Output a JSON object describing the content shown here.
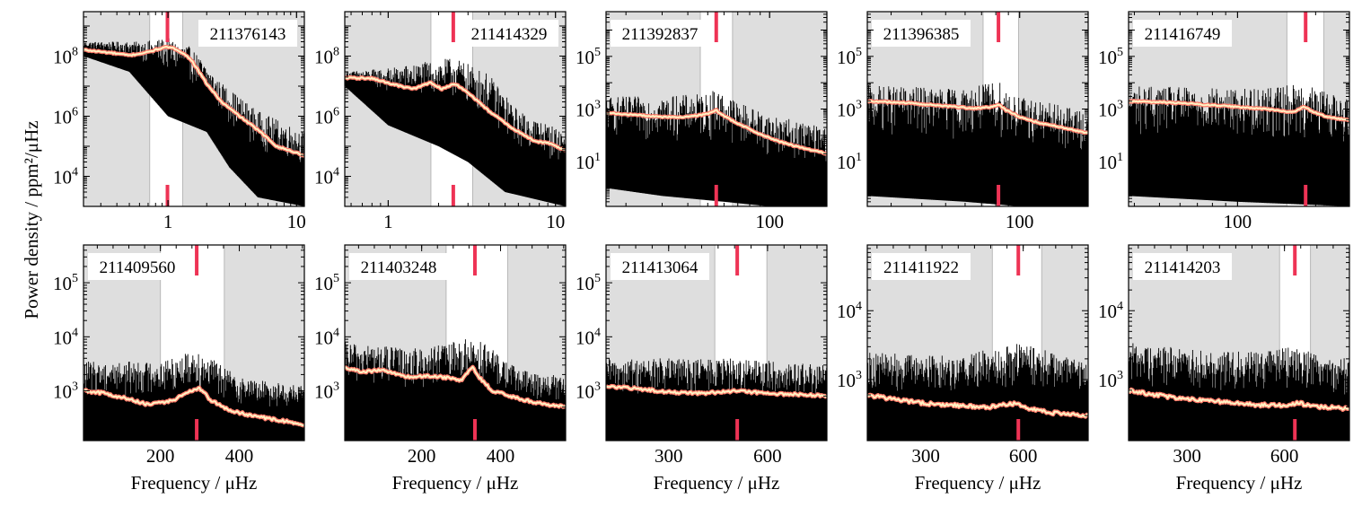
{
  "figure": {
    "ylabel": "Power density / ppm²/μHz",
    "xlabel": "Frequency / μHz"
  },
  "colors": {
    "band_shade": "#dedede",
    "band_edge": "#b8b8b8",
    "spectrum": "#000000",
    "smooth_outer": "#ff7a6a",
    "smooth_inner": "#fff3c4",
    "numax_marker": "#ee3355"
  },
  "chart_data": [
    {
      "type": "line",
      "id": "211376143",
      "xscale": "log",
      "yscale": "log",
      "xlim": [
        0.22,
        11.5
      ],
      "ylim": [
        1000,
        3000000000.0
      ],
      "xticks": [
        {
          "v": 1,
          "label": "1"
        },
        {
          "v": 10,
          "label": "10"
        }
      ],
      "yticks": [
        {
          "v": 10000,
          "base": "10",
          "exp": "4"
        },
        {
          "v": 1000000,
          "base": "10",
          "exp": "6"
        },
        {
          "v": 100000000,
          "base": "10",
          "exp": "8"
        }
      ],
      "band": [
        0.72,
        1.3
      ],
      "numax": 0.99,
      "label_pos": "top-right",
      "smooth": [
        [
          0.22,
          160000000.0
        ],
        [
          0.35,
          130000000.0
        ],
        [
          0.5,
          105000000.0
        ],
        [
          0.7,
          135000000.0
        ],
        [
          0.85,
          175000000.0
        ],
        [
          1.0,
          200000000.0
        ],
        [
          1.2,
          160000000.0
        ],
        [
          1.5,
          80000000.0
        ],
        [
          2.0,
          12000000.0
        ],
        [
          2.6,
          3000000.0
        ],
        [
          3.5,
          1100000.0
        ],
        [
          5.0,
          350000.0
        ],
        [
          7.0,
          100000.0
        ],
        [
          9.0,
          70000.0
        ],
        [
          11.5,
          50000.0
        ]
      ],
      "spectrum": {
        "hi": [
          [
            0.22,
            300000000.0
          ],
          [
            0.6,
            300000000.0
          ],
          [
            1.0,
            400000000.0
          ],
          [
            1.5,
            200000000.0
          ],
          [
            2.5,
            15000000.0
          ],
          [
            5,
            1500000.0
          ],
          [
            11.5,
            300000.0
          ]
        ],
        "lo": [
          [
            0.22,
            100000000.0
          ],
          [
            0.5,
            30000000.0
          ],
          [
            1.0,
            1000000.0
          ],
          [
            2,
            300000.0
          ],
          [
            3,
            20000.0
          ],
          [
            5,
            2000.0
          ],
          [
            11.5,
            1000.0
          ]
        ]
      }
    },
    {
      "type": "line",
      "id": "211414329",
      "xscale": "log",
      "yscale": "log",
      "xlim": [
        0.55,
        11.5
      ],
      "ylim": [
        1000,
        3000000000.0
      ],
      "xticks": [
        {
          "v": 1,
          "label": "1"
        },
        {
          "v": 10,
          "label": "10"
        }
      ],
      "yticks": [
        {
          "v": 10000,
          "base": "10",
          "exp": "4"
        },
        {
          "v": 1000000,
          "base": "10",
          "exp": "6"
        },
        {
          "v": 100000000,
          "base": "10",
          "exp": "8"
        }
      ],
      "band": [
        1.8,
        3.2
      ],
      "numax": 2.45,
      "label_pos": "top-right",
      "smooth": [
        [
          0.55,
          19000000.0
        ],
        [
          0.8,
          18000000.0
        ],
        [
          1.1,
          11000000.0
        ],
        [
          1.4,
          8000000.0
        ],
        [
          1.8,
          13000000.0
        ],
        [
          2.1,
          8000000.0
        ],
        [
          2.5,
          12000000.0
        ],
        [
          3.0,
          6000000.0
        ],
        [
          4.0,
          1500000.0
        ],
        [
          5.5,
          400000.0
        ],
        [
          7.5,
          150000.0
        ],
        [
          9.5,
          120000.0
        ],
        [
          11.5,
          70000.0
        ]
      ],
      "spectrum": {
        "hi": [
          [
            0.55,
            30000000.0
          ],
          [
            1.0,
            40000000.0
          ],
          [
            2.5,
            90000000.0
          ],
          [
            4,
            25000000.0
          ],
          [
            6,
            1500000.0
          ],
          [
            11.5,
            300000.0
          ]
        ],
        "lo": [
          [
            0.55,
            10000000.0
          ],
          [
            1.0,
            500000.0
          ],
          [
            2,
            100000.0
          ],
          [
            3,
            30000.0
          ],
          [
            5,
            3000.0
          ],
          [
            11.5,
            1000.0
          ]
        ]
      }
    },
    {
      "type": "line",
      "id": "211392837",
      "xscale": "log",
      "yscale": "log",
      "xlim": [
        16,
        190
      ],
      "ylim": [
        0.2,
        5000000.0
      ],
      "xticks": [
        {
          "v": 100,
          "label": "100"
        }
      ],
      "yticks": [
        {
          "v": 10,
          "base": "10",
          "exp": "1"
        },
        {
          "v": 1000,
          "base": "10",
          "exp": "3"
        },
        {
          "v": 100000,
          "base": "10",
          "exp": "5"
        }
      ],
      "band": [
        46,
        66
      ],
      "numax": 55,
      "label_pos": "top-left",
      "smooth": [
        [
          16,
          700
        ],
        [
          22,
          600
        ],
        [
          30,
          500
        ],
        [
          40,
          500
        ],
        [
          50,
          650
        ],
        [
          55,
          900
        ],
        [
          60,
          550
        ],
        [
          70,
          280
        ],
        [
          90,
          110
        ],
        [
          110,
          60
        ],
        [
          140,
          35
        ],
        [
          170,
          25
        ],
        [
          190,
          20
        ]
      ],
      "spectrum": {
        "hi": [
          [
            16,
            3000.0
          ],
          [
            30,
            3000.0
          ],
          [
            50,
            4000.0
          ],
          [
            55,
            6000.0
          ],
          [
            70,
            2000.0
          ],
          [
            100,
            600
          ],
          [
            190,
            200
          ]
        ],
        "lo": [
          [
            16,
            1
          ],
          [
            30,
            0.5
          ],
          [
            60,
            0.3
          ],
          [
            100,
            0.2
          ],
          [
            190,
            0.2
          ]
        ]
      }
    },
    {
      "type": "line",
      "id": "211396385",
      "xscale": "log",
      "yscale": "log",
      "xlim": [
        24,
        190
      ],
      "ylim": [
        0.2,
        5000000.0
      ],
      "xticks": [
        {
          "v": 100,
          "label": "100"
        }
      ],
      "yticks": [
        {
          "v": 10,
          "base": "10",
          "exp": "1"
        },
        {
          "v": 1000,
          "base": "10",
          "exp": "3"
        },
        {
          "v": 100000,
          "base": "10",
          "exp": "5"
        }
      ],
      "band": [
        71,
        99
      ],
      "numax": 82,
      "label_pos": "top-left",
      "smooth": [
        [
          24,
          2000
        ],
        [
          35,
          1700
        ],
        [
          50,
          1300
        ],
        [
          65,
          1050
        ],
        [
          78,
          1200
        ],
        [
          82,
          1500
        ],
        [
          88,
          900
        ],
        [
          100,
          500
        ],
        [
          120,
          300
        ],
        [
          150,
          200
        ],
        [
          190,
          120
        ]
      ],
      "spectrum": {
        "hi": [
          [
            24,
            8000.0
          ],
          [
            60,
            6000.0
          ],
          [
            82,
            12000.0
          ],
          [
            100,
            3000.0
          ],
          [
            190,
            800
          ]
        ],
        "lo": [
          [
            24,
            0.5
          ],
          [
            60,
            0.3
          ],
          [
            100,
            0.2
          ],
          [
            190,
            0.2
          ]
        ]
      }
    },
    {
      "type": "line",
      "id": "211416749",
      "xscale": "log",
      "yscale": "log",
      "xlim": [
        38,
        270
      ],
      "ylim": [
        0.2,
        5000000.0
      ],
      "xticks": [
        {
          "v": 100,
          "label": "100"
        }
      ],
      "yticks": [
        {
          "v": 10,
          "base": "10",
          "exp": "1"
        },
        {
          "v": 1000,
          "base": "10",
          "exp": "3"
        },
        {
          "v": 100000,
          "base": "10",
          "exp": "5"
        }
      ],
      "band": [
        155,
        215
      ],
      "numax": 183,
      "label_pos": "top-left",
      "smooth": [
        [
          38,
          2000
        ],
        [
          60,
          1700
        ],
        [
          90,
          1300
        ],
        [
          130,
          1000
        ],
        [
          165,
          750
        ],
        [
          180,
          1300
        ],
        [
          190,
          900
        ],
        [
          215,
          550
        ],
        [
          245,
          420
        ],
        [
          270,
          380
        ]
      ],
      "spectrum": {
        "hi": [
          [
            38,
            8000.0
          ],
          [
            100,
            6000.0
          ],
          [
            183,
            9000.0
          ],
          [
            270,
            2500.0
          ]
        ],
        "lo": [
          [
            38,
            0.5
          ],
          [
            100,
            0.3
          ],
          [
            270,
            0.2
          ]
        ]
      }
    },
    {
      "type": "line",
      "id": "211409560",
      "xscale": "linear",
      "yscale": "log",
      "xlim": [
        5,
        565
      ],
      "ylim": [
        120,
        500000
      ],
      "xticks": [
        {
          "v": 200,
          "label": "200"
        },
        {
          "v": 400,
          "label": "400"
        }
      ],
      "yticks": [
        {
          "v": 1000,
          "base": "10",
          "exp": "3"
        },
        {
          "v": 10000,
          "base": "10",
          "exp": "4"
        },
        {
          "v": 100000,
          "base": "10",
          "exp": "5"
        }
      ],
      "band": [
        200,
        362
      ],
      "numax": 292,
      "label_pos": "top-left",
      "smooth": [
        [
          5,
          1000
        ],
        [
          60,
          900
        ],
        [
          120,
          700
        ],
        [
          170,
          550
        ],
        [
          230,
          650
        ],
        [
          275,
          1000
        ],
        [
          300,
          1100
        ],
        [
          330,
          650
        ],
        [
          380,
          420
        ],
        [
          450,
          330
        ],
        [
          520,
          270
        ],
        [
          565,
          240
        ]
      ],
      "spectrum": {
        "hi": [
          [
            5,
            3500
          ],
          [
            200,
            3500
          ],
          [
            292,
            6000
          ],
          [
            400,
            1800
          ],
          [
            565,
            1200
          ]
        ],
        "lo": [
          [
            5,
            120
          ],
          [
            565,
            120
          ]
        ]
      }
    },
    {
      "type": "line",
      "id": "211403248",
      "xscale": "linear",
      "yscale": "log",
      "xlim": [
        5,
        565
      ],
      "ylim": [
        120,
        500000
      ],
      "xticks": [
        {
          "v": 200,
          "label": "200"
        },
        {
          "v": 400,
          "label": "400"
        }
      ],
      "yticks": [
        {
          "v": 1000,
          "base": "10",
          "exp": "3"
        },
        {
          "v": 10000,
          "base": "10",
          "exp": "4"
        },
        {
          "v": 100000,
          "base": "10",
          "exp": "5"
        }
      ],
      "band": [
        262,
        418
      ],
      "numax": 335,
      "label_pos": "top-left",
      "smooth": [
        [
          5,
          2700
        ],
        [
          50,
          2200
        ],
        [
          100,
          2500
        ],
        [
          160,
          1800
        ],
        [
          230,
          1900
        ],
        [
          300,
          1600
        ],
        [
          330,
          2800
        ],
        [
          345,
          1800
        ],
        [
          380,
          1000
        ],
        [
          450,
          700
        ],
        [
          520,
          550
        ],
        [
          565,
          500
        ]
      ],
      "spectrum": {
        "hi": [
          [
            5,
            8000
          ],
          [
            200,
            6000
          ],
          [
            335,
            10000.0
          ],
          [
            450,
            2500
          ],
          [
            565,
            1800
          ]
        ],
        "lo": [
          [
            5,
            120
          ],
          [
            565,
            120
          ]
        ]
      }
    },
    {
      "type": "line",
      "id": "211413064",
      "xscale": "linear",
      "yscale": "log",
      "xlim": [
        110,
        780
      ],
      "ylim": [
        120,
        500000
      ],
      "xticks": [
        {
          "v": 300,
          "label": "300"
        },
        {
          "v": 600,
          "label": "600"
        }
      ],
      "yticks": [
        {
          "v": 1000,
          "base": "10",
          "exp": "3"
        },
        {
          "v": 10000,
          "base": "10",
          "exp": "4"
        },
        {
          "v": 100000,
          "base": "10",
          "exp": "5"
        }
      ],
      "band": [
        440,
        598
      ],
      "numax": 508,
      "label_pos": "top-left",
      "smooth": [
        [
          110,
          1200
        ],
        [
          200,
          1100
        ],
        [
          300,
          950
        ],
        [
          400,
          900
        ],
        [
          500,
          1000
        ],
        [
          600,
          900
        ],
        [
          700,
          850
        ],
        [
          780,
          800
        ]
      ],
      "spectrum": {
        "hi": [
          [
            110,
            4000
          ],
          [
            500,
            4000
          ],
          [
            780,
            3000
          ]
        ],
        "lo": [
          [
            110,
            120
          ],
          [
            780,
            120
          ]
        ]
      }
    },
    {
      "type": "line",
      "id": "211411922",
      "xscale": "linear",
      "yscale": "log",
      "xlim": [
        120,
        800
      ],
      "ylim": [
        130,
        90000
      ],
      "xticks": [
        {
          "v": 300,
          "label": "300"
        },
        {
          "v": 600,
          "label": "600"
        }
      ],
      "yticks": [
        {
          "v": 1000,
          "base": "10",
          "exp": "3"
        },
        {
          "v": 10000,
          "base": "10",
          "exp": "4"
        }
      ],
      "band": [
        505,
        657
      ],
      "numax": 585,
      "label_pos": "top-left",
      "smooth": [
        [
          120,
          600
        ],
        [
          200,
          520
        ],
        [
          300,
          450
        ],
        [
          400,
          420
        ],
        [
          500,
          400
        ],
        [
          570,
          450
        ],
        [
          600,
          400
        ],
        [
          680,
          330
        ],
        [
          800,
          300
        ]
      ],
      "spectrum": {
        "hi": [
          [
            120,
            2500
          ],
          [
            400,
            2200
          ],
          [
            585,
            3500
          ],
          [
            800,
            1800
          ]
        ],
        "lo": [
          [
            120,
            130
          ],
          [
            800,
            130
          ]
        ]
      }
    },
    {
      "type": "line",
      "id": "211414203",
      "xscale": "linear",
      "yscale": "log",
      "xlim": [
        120,
        800
      ],
      "ylim": [
        130,
        90000
      ],
      "xticks": [
        {
          "v": 300,
          "label": "300"
        },
        {
          "v": 600,
          "label": "600"
        }
      ],
      "yticks": [
        {
          "v": 1000,
          "base": "10",
          "exp": "3"
        },
        {
          "v": 10000,
          "base": "10",
          "exp": "4"
        }
      ],
      "band": [
        585,
        680
      ],
      "numax": 632,
      "label_pos": "top-left",
      "smooth": [
        [
          120,
          700
        ],
        [
          200,
          600
        ],
        [
          300,
          520
        ],
        [
          400,
          480
        ],
        [
          500,
          430
        ],
        [
          600,
          420
        ],
        [
          640,
          460
        ],
        [
          700,
          400
        ],
        [
          800,
          380
        ]
      ],
      "spectrum": {
        "hi": [
          [
            120,
            3500
          ],
          [
            400,
            2500
          ],
          [
            632,
            3000
          ],
          [
            800,
            2000
          ]
        ],
        "lo": [
          [
            120,
            130
          ],
          [
            800,
            130
          ]
        ]
      }
    }
  ]
}
